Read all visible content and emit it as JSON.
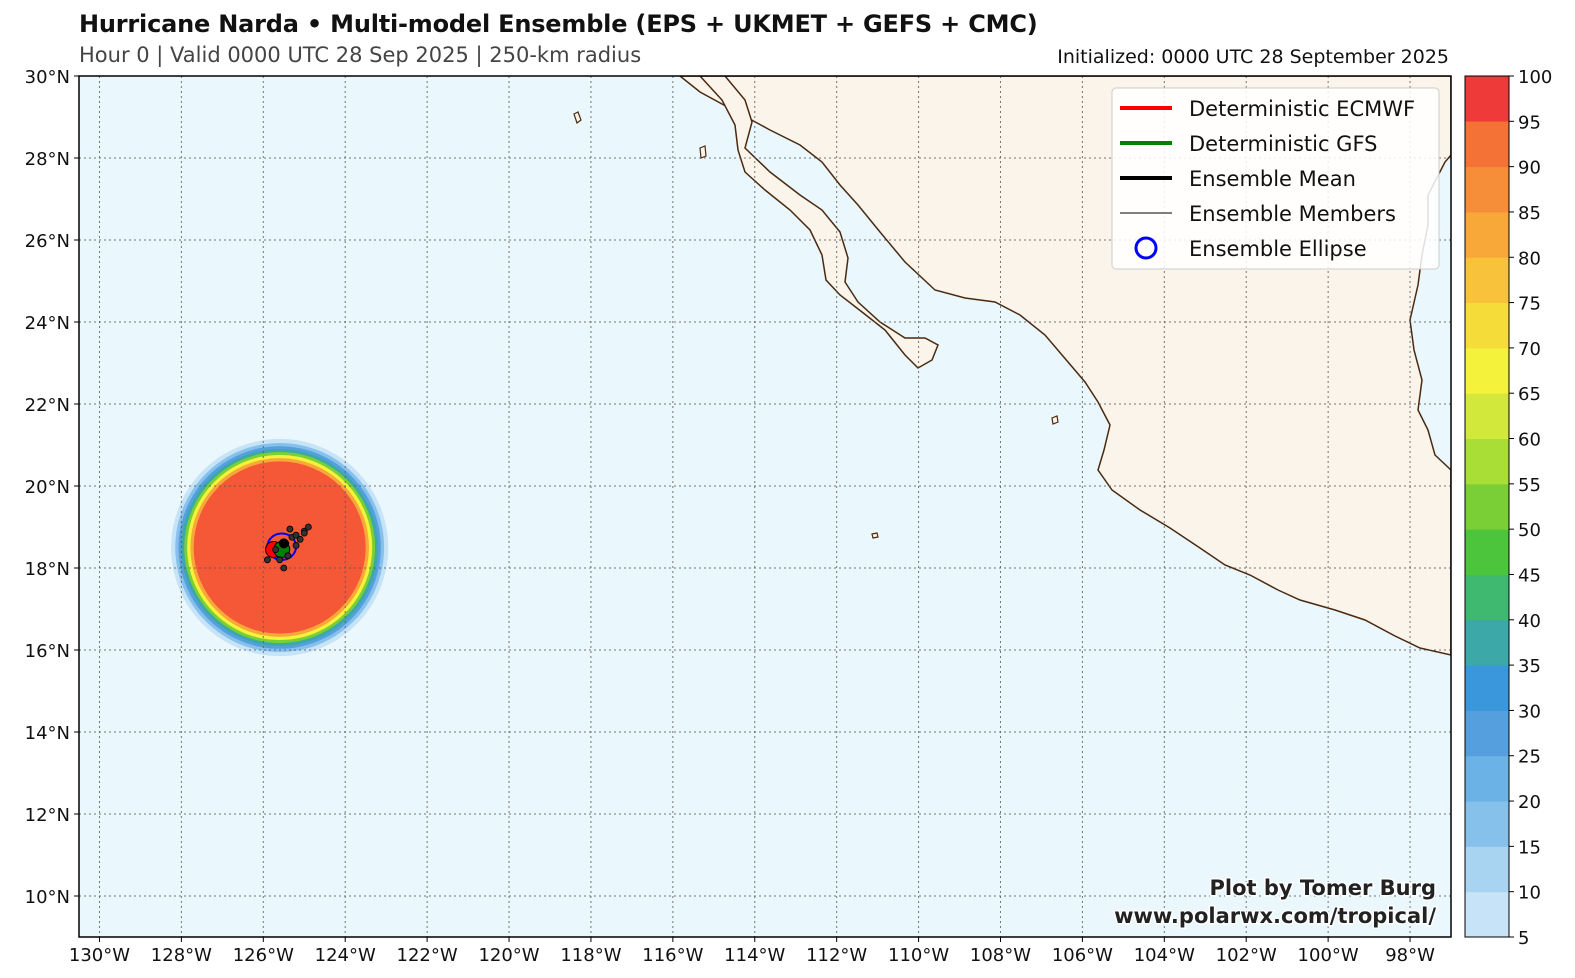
{
  "header": {
    "title": "Hurricane Narda • Multi-model Ensemble (EPS + UKMET + GEFS + CMC)",
    "subtitle": "Hour 0 | Valid 0000 UTC 28 Sep 2025 | 250-km radius",
    "initialized": "Initialized: 0000 UTC 28 September 2025"
  },
  "map": {
    "lon_range": [
      -130.5,
      -97
    ],
    "lat_range": [
      9,
      30
    ],
    "lon_ticks": [
      {
        "value": -130,
        "label": "130°W"
      },
      {
        "value": -128,
        "label": "128°W"
      },
      {
        "value": -126,
        "label": "126°W"
      },
      {
        "value": -124,
        "label": "124°W"
      },
      {
        "value": -122,
        "label": "122°W"
      },
      {
        "value": -120,
        "label": "120°W"
      },
      {
        "value": -118,
        "label": "118°W"
      },
      {
        "value": -116,
        "label": "116°W"
      },
      {
        "value": -114,
        "label": "114°W"
      },
      {
        "value": -112,
        "label": "112°W"
      },
      {
        "value": -110,
        "label": "110°W"
      },
      {
        "value": -108,
        "label": "108°W"
      },
      {
        "value": -106,
        "label": "106°W"
      },
      {
        "value": -104,
        "label": "104°W"
      },
      {
        "value": -102,
        "label": "102°W"
      },
      {
        "value": -100,
        "label": "100°W"
      },
      {
        "value": -98,
        "label": "98°W"
      }
    ],
    "lat_ticks": [
      {
        "value": 30,
        "label": "30°N"
      },
      {
        "value": 28,
        "label": "28°N"
      },
      {
        "value": 26,
        "label": "26°N"
      },
      {
        "value": 24,
        "label": "24°N"
      },
      {
        "value": 22,
        "label": "22°N"
      },
      {
        "value": 20,
        "label": "20°N"
      },
      {
        "value": 18,
        "label": "18°N"
      },
      {
        "value": 16,
        "label": "16°N"
      },
      {
        "value": 14,
        "label": "14°N"
      },
      {
        "value": 12,
        "label": "12°N"
      },
      {
        "value": 10,
        "label": "10°N"
      }
    ],
    "grid": true,
    "colors": {
      "ocean": "#eaf7fc",
      "land": "#faf4ea",
      "coast": "#4a2a10",
      "grid": "#555555"
    },
    "probability_field": {
      "center_lon": -125.6,
      "center_lat": 18.5,
      "rings": [
        {
          "radius_deg": 2.65,
          "value": 5
        },
        {
          "radius_deg": 2.55,
          "value": 15
        },
        {
          "radius_deg": 2.47,
          "value": 25
        },
        {
          "radius_deg": 2.4,
          "value": 35
        },
        {
          "radius_deg": 2.33,
          "value": 50
        },
        {
          "radius_deg": 2.26,
          "value": 65
        },
        {
          "radius_deg": 2.18,
          "value": 80
        },
        {
          "radius_deg": 2.1,
          "value": 95
        }
      ]
    },
    "ensemble_points": [
      {
        "lon": -125.45,
        "lat": 18.6
      },
      {
        "lon": -125.3,
        "lat": 18.75
      },
      {
        "lon": -125.2,
        "lat": 18.8
      },
      {
        "lon": -125.0,
        "lat": 18.9
      },
      {
        "lon": -124.9,
        "lat": 19.0
      },
      {
        "lon": -125.35,
        "lat": 18.95
      },
      {
        "lon": -125.6,
        "lat": 18.2
      },
      {
        "lon": -125.4,
        "lat": 18.3
      },
      {
        "lon": -125.5,
        "lat": 18.0
      },
      {
        "lon": -125.2,
        "lat": 18.55
      },
      {
        "lon": -125.1,
        "lat": 18.7
      },
      {
        "lon": -125.9,
        "lat": 18.2
      },
      {
        "lon": -125.7,
        "lat": 18.45
      },
      {
        "lon": -125.0,
        "lat": 18.85
      }
    ],
    "ensemble_ellipse": {
      "center_lon": -125.55,
      "center_lat": 18.52,
      "rx_deg": 0.35,
      "ry_deg": 0.32
    },
    "ecmwf_point": {
      "lon": -125.75,
      "lat": 18.45
    },
    "gfs_point": {
      "lon": -125.55,
      "lat": 18.45
    },
    "mean_point": {
      "lon": -125.5,
      "lat": 18.6
    }
  },
  "legend": {
    "items": [
      {
        "label": "Deterministic ECMWF",
        "color": "#ff0000",
        "kind": "line-thick"
      },
      {
        "label": "Deterministic GFS",
        "color": "#008000",
        "kind": "line-thick"
      },
      {
        "label": "Ensemble Mean",
        "color": "#000000",
        "kind": "line-thick"
      },
      {
        "label": "Ensemble Members",
        "color": "#000000",
        "kind": "line-thin"
      },
      {
        "label": "Ensemble Ellipse",
        "color": "#0000ff",
        "kind": "circle"
      }
    ]
  },
  "colorbar": {
    "levels": [
      5,
      10,
      15,
      20,
      25,
      30,
      35,
      40,
      45,
      50,
      55,
      60,
      65,
      70,
      75,
      80,
      85,
      90,
      95,
      100
    ],
    "colors": [
      "#c6e3f7",
      "#a8d4f2",
      "#86c1ec",
      "#6bb2e6",
      "#559fdf",
      "#3a97dc",
      "#3ca8a8",
      "#3fb870",
      "#4cc43c",
      "#7ace36",
      "#a9de36",
      "#d2e83a",
      "#f4f23a",
      "#f6dc38",
      "#f8c23a",
      "#f7a838",
      "#f68d38",
      "#f57236",
      "#f45836",
      "#ef3a3a"
    ]
  },
  "credit": {
    "line1": "Plot by Tomer Burg",
    "line2": "www.polarwx.com/tropical/"
  }
}
